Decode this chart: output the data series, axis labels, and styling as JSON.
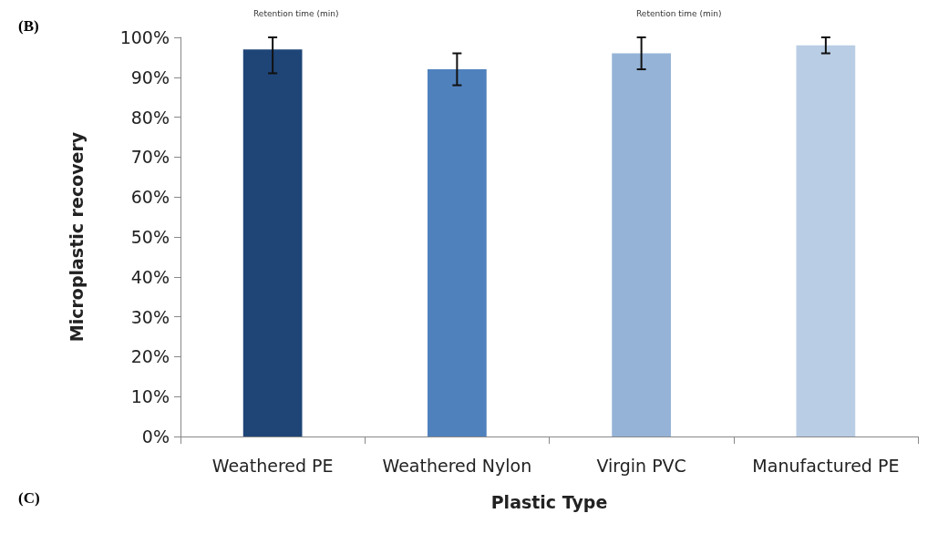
{
  "chart_data": {
    "type": "bar",
    "xlabel": "Plastic Type",
    "ylabel": "Microplastic recovery",
    "categories": [
      "Weathered PE",
      "Weathered Nylon",
      "Virgin PVC",
      "Manufactured PE"
    ],
    "values": [
      97,
      92,
      96,
      98
    ],
    "colors": [
      "#1f4577",
      "#4f81bd",
      "#95b3d7",
      "#b9cde5"
    ],
    "errors": [
      [
        91,
        100
      ],
      [
        88,
        96
      ],
      [
        92,
        100
      ],
      [
        96,
        100
      ]
    ],
    "ylim": [
      0,
      100
    ],
    "yticks": [
      {
        "value": 0,
        "label": "0%"
      },
      {
        "value": 10,
        "label": "10%"
      },
      {
        "value": 20,
        "label": "20%"
      },
      {
        "value": 30,
        "label": "30%"
      },
      {
        "value": 40,
        "label": "40%"
      },
      {
        "value": 50,
        "label": "50%"
      },
      {
        "value": 60,
        "label": "60%"
      },
      {
        "value": 70,
        "label": "70%"
      },
      {
        "value": 80,
        "label": "80%"
      },
      {
        "value": 90,
        "label": "90%"
      },
      {
        "value": 100,
        "label": "100%"
      }
    ],
    "grid": false,
    "annotations": [
      "(B)",
      "Retention time (min)",
      "Retention time (min)",
      "(C)"
    ]
  }
}
